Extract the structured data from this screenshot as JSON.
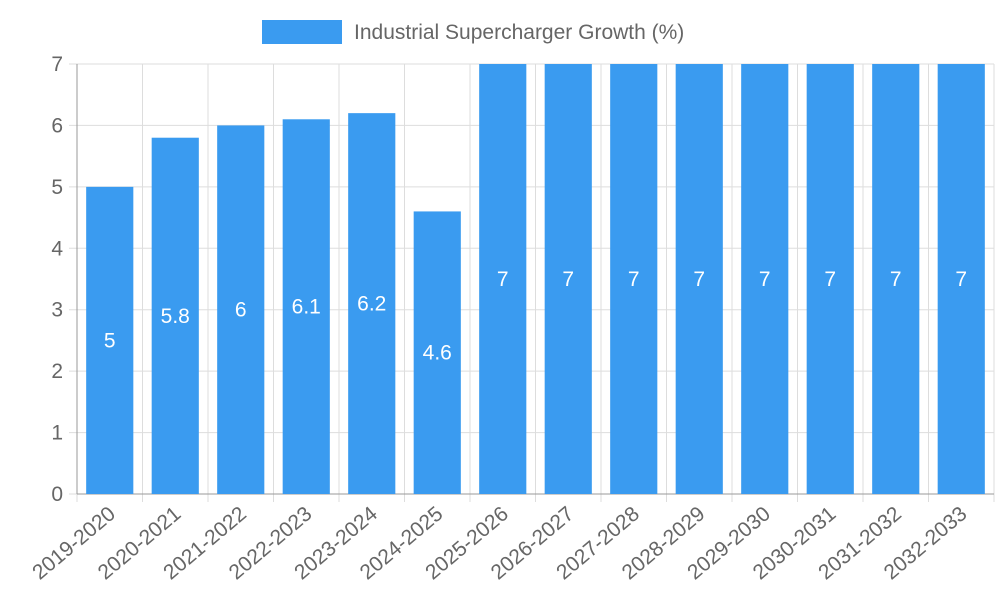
{
  "chart_data": {
    "type": "bar",
    "categories": [
      "2019-2020",
      "2020-2021",
      "2021-2022",
      "2022-2023",
      "2023-2024",
      "2024-2025",
      "2025-2026",
      "2026-2027",
      "2027-2028",
      "2028-2029",
      "2029-2030",
      "2030-2031",
      "2031-2032",
      "2032-2033"
    ],
    "series": [
      {
        "name": "Industrial Supercharger Growth (%)",
        "values": [
          5,
          5.8,
          6,
          6.1,
          6.2,
          4.6,
          7,
          7,
          7,
          7,
          7,
          7,
          7,
          7
        ]
      }
    ],
    "ylim": [
      0,
      7
    ],
    "yticks": [
      0,
      1,
      2,
      3,
      4,
      5,
      6,
      7
    ],
    "grid": true,
    "legend": "top-center",
    "title": "",
    "xlabel": "",
    "ylabel": "",
    "colors": {
      "bar": "#3a9bf0",
      "label": "#ffffff",
      "grid": "#dddddd",
      "axis": "#999999",
      "text": "#666666"
    }
  }
}
